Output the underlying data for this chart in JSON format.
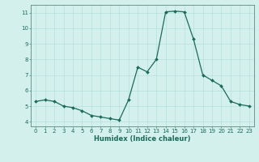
{
  "data_points": [
    [
      0,
      5.3
    ],
    [
      1,
      5.4
    ],
    [
      2,
      5.3
    ],
    [
      3,
      5.0
    ],
    [
      4,
      4.9
    ],
    [
      5,
      4.7
    ],
    [
      6,
      4.4
    ],
    [
      7,
      4.3
    ],
    [
      8,
      4.2
    ],
    [
      9,
      4.1
    ],
    [
      10,
      5.4
    ],
    [
      11,
      7.5
    ],
    [
      12,
      7.2
    ],
    [
      13,
      8.0
    ],
    [
      14,
      11.05
    ],
    [
      15,
      11.1
    ],
    [
      16,
      11.05
    ],
    [
      17,
      9.3
    ],
    [
      18,
      7.0
    ],
    [
      19,
      6.65
    ],
    [
      20,
      6.3
    ],
    [
      21,
      5.3
    ],
    [
      22,
      5.1
    ],
    [
      23,
      5.0
    ]
  ],
  "line_color": "#1a6b5a",
  "marker_color": "#1a6b5a",
  "bg_color": "#d4f0ec",
  "grid_color": "#b0ddd8",
  "axis_color": "#5a8a80",
  "tick_color": "#1a6b5a",
  "ylim": [
    3.7,
    11.5
  ],
  "yticks": [
    4,
    5,
    6,
    7,
    8,
    9,
    10,
    11
  ],
  "xlim": [
    -0.5,
    23.5
  ],
  "xlabel": "Humidex (Indice chaleur)",
  "xlabel_fontsize": 6.0,
  "tick_fontsize": 5.0,
  "linewidth": 0.9,
  "markersize": 2.0
}
